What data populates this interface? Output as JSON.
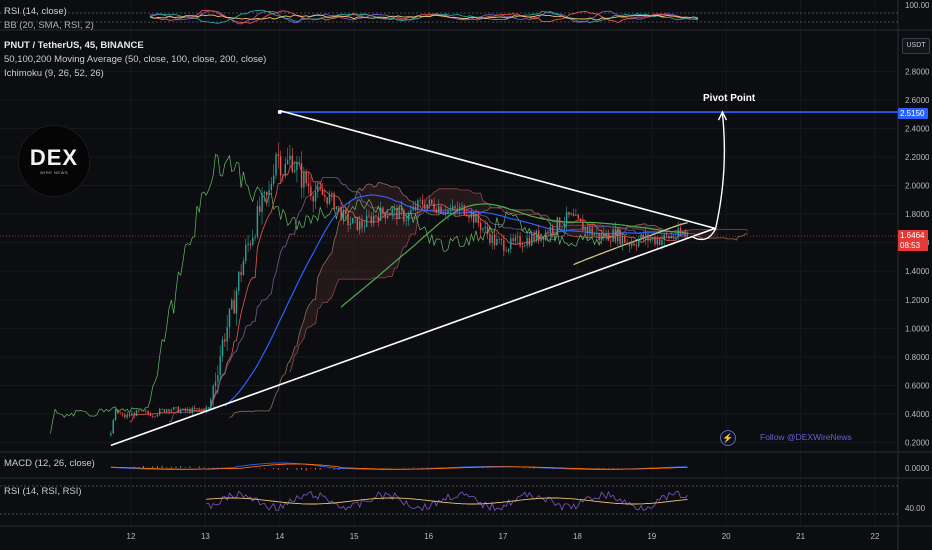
{
  "legend": {
    "top_pane_rsi": "RSI (14, close)",
    "top_pane_bb": "BB (20, SMA, RSI, 2)",
    "symbol": "PNUT / TetherUS, 45, BINANCE",
    "moving_averages": "50,100,200 Moving Average (50, close, 100, close, 200, close)",
    "ichimoku": "Ichimoku (9, 26, 52, 26)",
    "macd": "MACD (12, 26, close)",
    "rsi_bottom": "RSI (14, RSI, RSI)"
  },
  "currency_badge": "USDT",
  "logo": {
    "word": "DEX",
    "sub": "WIRE NEWS"
  },
  "watermark": "Follow @DEXWireNews",
  "annotation": {
    "pivot_label": "Pivot Point"
  },
  "price_tags": {
    "pivot_level": "2.5150",
    "current_price": "1.6464",
    "countdown": "08:53"
  },
  "colors": {
    "bull": "#26a69a",
    "bear": "#ef5350",
    "pivot_line": "#2962ff",
    "ma50": "#2962ff",
    "ma100": "#4caf50",
    "ma200": "#d4c58a",
    "tenkan": "#ef5350",
    "kijun": "#2196f3",
    "chikou": "#66bb6a",
    "triangle": "#ffffff"
  },
  "top_pane": {
    "axis_label": "100.00"
  },
  "macd_pane": {
    "axis_label": "0.0000"
  },
  "rsi_pane": {
    "axis_label": "40.00"
  },
  "chart_data": {
    "type": "line",
    "title": "PNUT / TetherUS, 45, BINANCE",
    "x_ticks": [
      "12",
      "13",
      "14",
      "15",
      "16",
      "17",
      "18",
      "19",
      "20",
      "21",
      "22"
    ],
    "y_ticks": [
      "2.8000",
      "2.6000",
      "2.4000",
      "2.2000",
      "2.0000",
      "1.8000",
      "1.6000",
      "1.4000",
      "1.2000",
      "1.0000",
      "0.8000",
      "0.6000",
      "0.4000",
      "0.2000"
    ],
    "ylim": [
      0.15,
      2.95
    ],
    "xlim": [
      11.4,
      22.15
    ],
    "pivot_level": 2.515,
    "current_price": 1.6464,
    "price_path": [
      [
        11.73,
        0.25
      ],
      [
        11.78,
        0.42
      ],
      [
        11.9,
        0.38
      ],
      [
        12.1,
        0.41
      ],
      [
        12.3,
        0.4
      ],
      [
        12.5,
        0.44
      ],
      [
        12.7,
        0.42
      ],
      [
        12.9,
        0.43
      ],
      [
        13.05,
        0.44
      ],
      [
        13.15,
        0.7
      ],
      [
        13.25,
        0.95
      ],
      [
        13.35,
        1.1
      ],
      [
        13.45,
        1.35
      ],
      [
        13.55,
        1.55
      ],
      [
        13.65,
        1.7
      ],
      [
        13.75,
        1.85
      ],
      [
        13.85,
        1.92
      ],
      [
        13.95,
        2.25
      ],
      [
        14.05,
        2.1
      ],
      [
        14.15,
        2.2
      ],
      [
        14.3,
        2.05
      ],
      [
        14.5,
        1.95
      ],
      [
        14.7,
        1.9
      ],
      [
        14.9,
        1.75
      ],
      [
        15.1,
        1.72
      ],
      [
        15.3,
        1.8
      ],
      [
        15.5,
        1.82
      ],
      [
        15.7,
        1.78
      ],
      [
        15.9,
        1.88
      ],
      [
        16.1,
        1.86
      ],
      [
        16.3,
        1.82
      ],
      [
        16.5,
        1.84
      ],
      [
        16.7,
        1.72
      ],
      [
        16.9,
        1.6
      ],
      [
        17.1,
        1.58
      ],
      [
        17.3,
        1.62
      ],
      [
        17.5,
        1.65
      ],
      [
        17.7,
        1.72
      ],
      [
        17.9,
        1.78
      ],
      [
        18.1,
        1.7
      ],
      [
        18.3,
        1.64
      ],
      [
        18.5,
        1.66
      ],
      [
        18.7,
        1.6
      ],
      [
        18.9,
        1.63
      ],
      [
        19.1,
        1.62
      ],
      [
        19.3,
        1.65
      ],
      [
        19.5,
        1.66
      ]
    ],
    "triangle": {
      "upper": [
        [
          14.0,
          2.525
        ],
        [
          19.85,
          1.7
        ]
      ],
      "lower": [
        [
          11.73,
          0.18
        ],
        [
          19.85,
          1.7
        ]
      ]
    },
    "projection_arrow": [
      [
        19.55,
        1.64
      ],
      [
        19.75,
        1.67
      ],
      [
        19.95,
        2.515
      ]
    ]
  }
}
